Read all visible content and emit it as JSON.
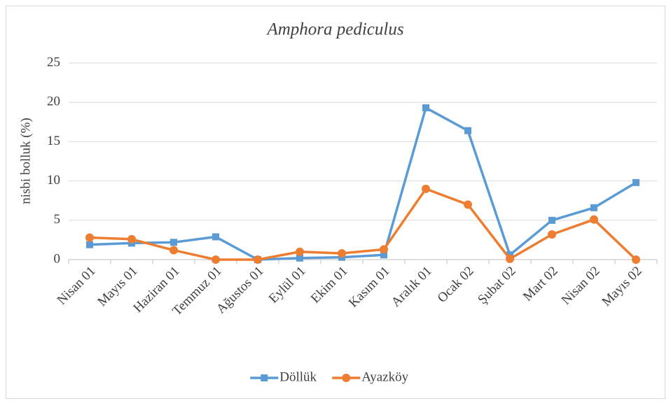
{
  "chart_data": {
    "type": "line",
    "title": "Amphora pediculus",
    "y_label": "nisbi bolluk (%)",
    "categories": [
      "Nisan 01",
      "Mayıs 01",
      "Haziran 01",
      "Temmuz 01",
      "Ağustos 01",
      "Eylül 01",
      "Ekim 01",
      "Kasım 01",
      "Aralık 01",
      "Ocak 02",
      "Şubat 02",
      "Mart 02",
      "Nisan 02",
      "Mayıs 02"
    ],
    "series": [
      {
        "name": "Döllük",
        "color": "#5b9bd5",
        "marker": "square",
        "values": [
          1.9,
          2.1,
          2.2,
          2.9,
          0.0,
          0.2,
          0.3,
          0.6,
          19.3,
          16.4,
          0.6,
          5.0,
          6.6,
          9.8
        ]
      },
      {
        "name": "Ayazköy",
        "color": "#ed7d31",
        "marker": "circle",
        "values": [
          2.8,
          2.6,
          1.2,
          0.0,
          0.0,
          1.0,
          0.8,
          1.3,
          9.0,
          7.0,
          0.1,
          3.2,
          5.1,
          0.0
        ]
      }
    ],
    "ylim": [
      0,
      25
    ],
    "yticks": [
      0,
      5,
      10,
      15,
      20,
      25
    ],
    "grid": true,
    "legend": "bottom"
  }
}
